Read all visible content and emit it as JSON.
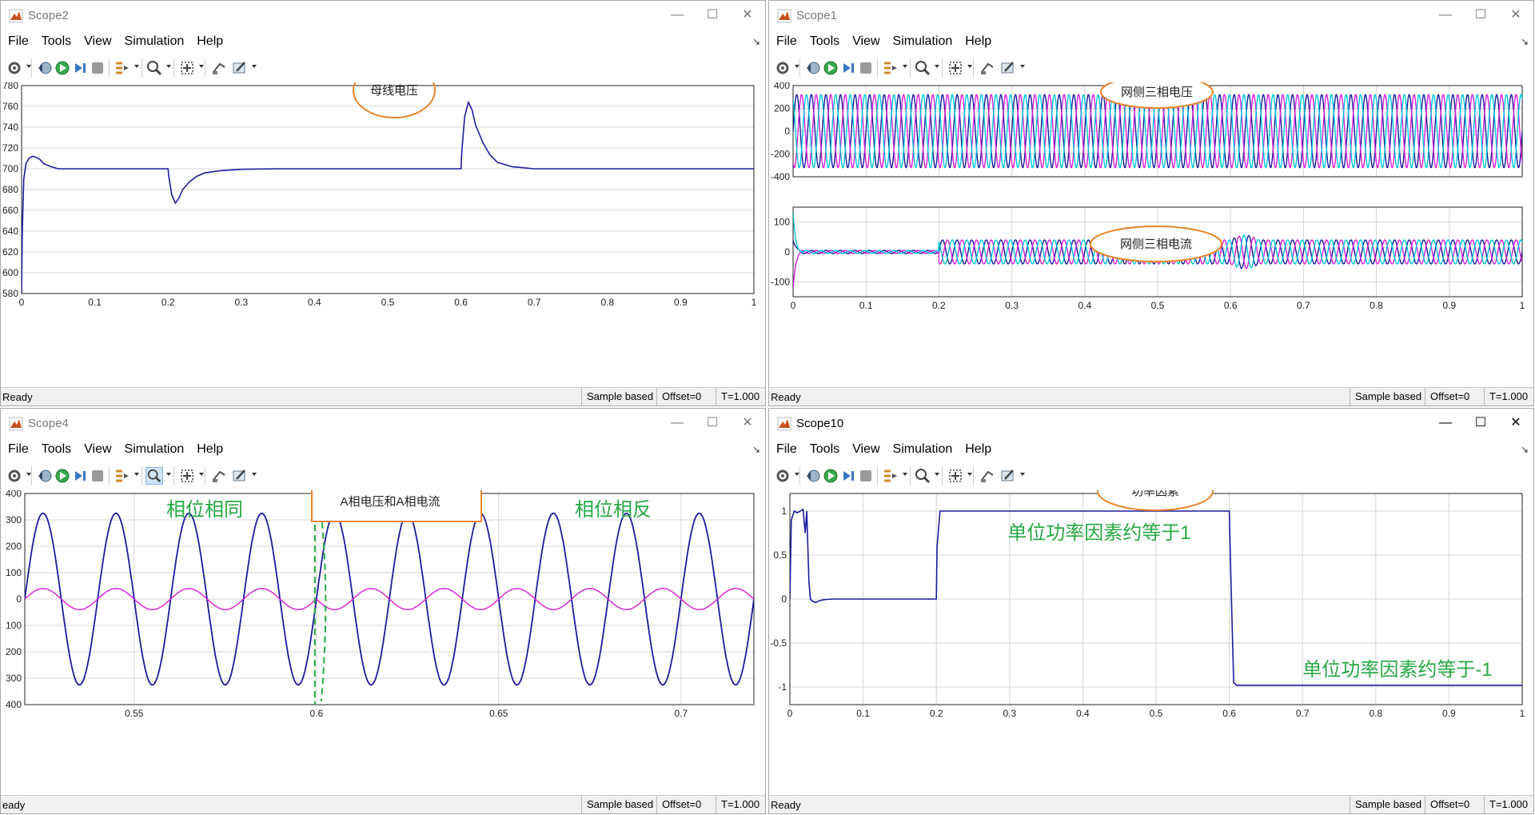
{
  "menu": [
    "File",
    "Tools",
    "View",
    "Simulation",
    "Help"
  ],
  "status": {
    "ready": "Ready",
    "ready_clipped": "eady",
    "mode": "Sample based",
    "offset": "Offset=0",
    "time": "T=1.000"
  },
  "colors": {
    "blue": "#1c1c9c",
    "magenta": "#d81fd8",
    "cyan": "#00c8d8",
    "annot_orange": "#e8852a",
    "annot_green": "#27a844",
    "grid": "#d4d4d4"
  },
  "icons": [
    "settings-gear-icon",
    "rewind-icon",
    "run-icon",
    "step-forward-icon",
    "stop-icon",
    "signal-select-icon",
    "zoom-icon",
    "autoscale-icon",
    "highlight-block-icon",
    "style-icon"
  ],
  "windows": {
    "scope2": {
      "title": "Scope2",
      "active": false
    },
    "scope1": {
      "title": "Scope1",
      "active": false
    },
    "scope4": {
      "title": "Scope4",
      "active": false
    },
    "scope10": {
      "title": "Scope10",
      "active": true
    }
  },
  "annotations": {
    "scope2_label": "母线电压",
    "scope1_top_label": "网侧三相电压",
    "scope1_bottom_label": "网侧三相电流",
    "scope4_box_label": "A相电压和A相电流",
    "scope4_same": "相位相同",
    "scope4_opposite": "相位相反",
    "scope10_label": "功率因素",
    "scope10_pf1": "单位功率因素约等于1",
    "scope10_pfm1": "单位功率因素约等于-1"
  },
  "chart_data": [
    {
      "id": "scope2",
      "type": "line",
      "xlim": [
        0,
        1
      ],
      "ylim": [
        580,
        780
      ],
      "xticks": [
        "0",
        "0.1",
        "0.2",
        "0.3",
        "0.4",
        "0.5",
        "0.6",
        "0.7",
        "0.8",
        "0.9",
        "1"
      ],
      "yticks": [
        "580",
        "600",
        "620",
        "640",
        "660",
        "680",
        "700",
        "720",
        "740",
        "760",
        "780"
      ],
      "series": [
        {
          "color": "#1c1c9c",
          "x": [
            0,
            0.001,
            0.003,
            0.006,
            0.01,
            0.015,
            0.02,
            0.025,
            0.03,
            0.04,
            0.05,
            0.06,
            0.2,
            0.201,
            0.205,
            0.21,
            0.215,
            0.22,
            0.23,
            0.24,
            0.25,
            0.27,
            0.3,
            0.35,
            0.6,
            0.601,
            0.605,
            0.61,
            0.615,
            0.62,
            0.63,
            0.64,
            0.65,
            0.67,
            0.7,
            1.0
          ],
          "y": [
            580,
            640,
            690,
            705,
            710,
            712,
            711,
            709,
            705,
            702,
            700,
            700,
            700,
            693,
            675,
            667,
            672,
            680,
            688,
            693,
            696,
            698,
            699.5,
            700,
            700,
            715,
            750,
            764,
            757,
            742,
            725,
            713,
            706,
            702,
            700,
            700
          ]
        }
      ]
    },
    {
      "id": "scope1_voltage",
      "type": "line",
      "xlim": [
        0,
        1
      ],
      "ylim": [
        -400,
        400
      ],
      "yticks": [
        "400",
        "200",
        "0",
        "-200",
        "-400"
      ],
      "series": [
        {
          "name": "",
          "color": "#1c1c9c",
          "amplitude": 320,
          "frequency_hz": 50,
          "phase_deg": 0
        },
        {
          "name": "",
          "color": "#d81fd8",
          "amplitude": 320,
          "frequency_hz": 50,
          "phase_deg": -120
        },
        {
          "name": "",
          "color": "#00c8d8",
          "amplitude": 320,
          "frequency_hz": 50,
          "phase_deg": 120
        }
      ]
    },
    {
      "id": "scope1_current",
      "type": "line",
      "xlim": [
        0,
        1
      ],
      "ylim": [
        -150,
        150
      ],
      "xticks": [
        "0",
        "0.1",
        "0.2",
        "0.3",
        "0.4",
        "0.5",
        "0.6",
        "0.7",
        "0.8",
        "0.9",
        "1"
      ],
      "yticks": [
        "100",
        "0",
        "-100"
      ],
      "series": [
        {
          "name": "",
          "color": "#1c1c9c",
          "amplitude_before_0_2": 5,
          "amplitude_after_0_2": 40,
          "frequency_hz": 50,
          "phase_deg": 0
        },
        {
          "name": "",
          "color": "#d81fd8",
          "amplitude_before_0_2": 5,
          "amplitude_after_0_2": 40,
          "frequency_hz": 50,
          "phase_deg": -120
        },
        {
          "name": "",
          "color": "#00c8d8",
          "amplitude_before_0_2": 5,
          "amplitude_after_0_2": 40,
          "frequency_hz": 50,
          "phase_deg": 120
        }
      ]
    },
    {
      "id": "scope4",
      "type": "line",
      "xlim": [
        0.52,
        0.72
      ],
      "ylim": [
        -400,
        400
      ],
      "xticks": [
        "0.55",
        "0.6",
        "0.65",
        "0.7"
      ],
      "yticks": [
        "400",
        "300",
        "200",
        "100",
        "0",
        "100",
        "200",
        "300",
        "400"
      ],
      "series": [
        {
          "name": "",
          "color": "#1c1c9c",
          "amplitude": 325,
          "frequency_hz": 50,
          "phase_deg": 0
        },
        {
          "name": "",
          "color": "#d81fd8",
          "amplitude": 40,
          "frequency_hz": 50,
          "phase_deg": 0,
          "phase_after_0_6_deg": 180
        }
      ]
    },
    {
      "id": "scope10",
      "type": "line",
      "xlim": [
        0,
        1
      ],
      "ylim": [
        -1.2,
        1.2
      ],
      "xticks": [
        "0",
        "0.1",
        "0.2",
        "0.3",
        "0.4",
        "0.5",
        "0.6",
        "0.7",
        "0.8",
        "0.9",
        "1"
      ],
      "yticks": [
        "1",
        "0.5",
        "0",
        "-0.5",
        "-1"
      ],
      "series": [
        {
          "color": "#1c1c9c",
          "x": [
            0,
            0.002,
            0.006,
            0.01,
            0.014,
            0.018,
            0.021,
            0.023,
            0.026,
            0.028,
            0.03,
            0.035,
            0.04,
            0.045,
            0.05,
            0.06,
            0.08,
            0.2,
            0.201,
            0.205,
            0.21,
            0.6,
            0.603,
            0.606,
            0.61,
            0.62,
            1.0
          ],
          "y": [
            0,
            0.9,
            1.0,
            0.98,
            1.0,
            1.02,
            0.75,
            1.0,
            0.2,
            0.0,
            -0.02,
            -0.04,
            -0.02,
            -0.01,
            -0.005,
            0.0,
            0.0,
            0.0,
            0.6,
            1.0,
            1.0,
            1.0,
            0.0,
            -0.95,
            -0.98,
            -0.98,
            -0.98
          ]
        }
      ]
    }
  ]
}
